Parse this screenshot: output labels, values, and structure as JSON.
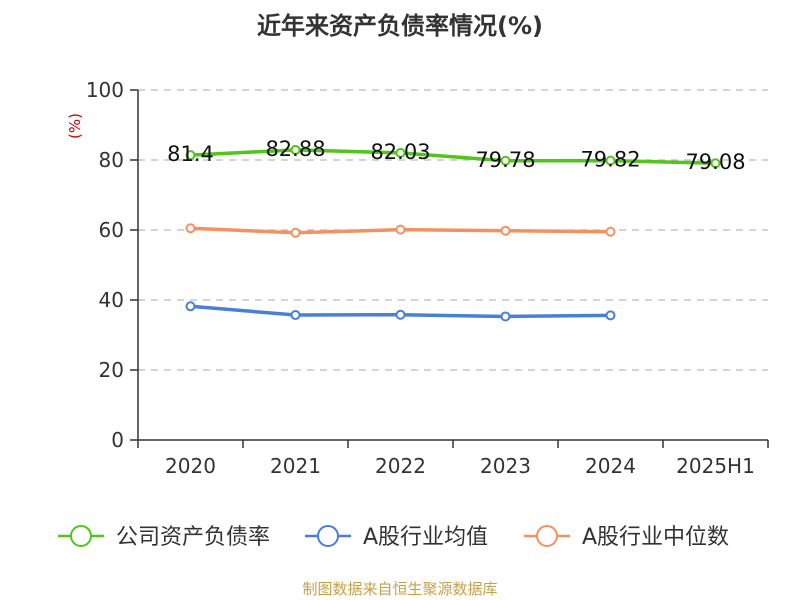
{
  "title": "近年来资产负债率情况(%)",
  "source": "制图数据来自恒生聚源数据库",
  "chart_data": {
    "type": "line",
    "title": "近年来资产负债率情况(%)",
    "ylabel": "(%)",
    "categories": [
      "2020",
      "2021",
      "2022",
      "2023",
      "2024",
      "2025H1"
    ],
    "ylim": [
      0,
      100
    ],
    "yticks": [
      0,
      20,
      40,
      60,
      80,
      100
    ],
    "grid": true,
    "legend_position": "bottom",
    "series": [
      {
        "name": "公司资产负债率",
        "color": "#52c41a",
        "values": [
          81.4,
          82.88,
          82.03,
          79.78,
          79.82,
          79.08
        ],
        "labels": [
          "81.4",
          "82.88",
          "82.03",
          "79.78",
          "79.82",
          "79.08"
        ]
      },
      {
        "name": "A股行业均值",
        "color": "#4a7fd8",
        "values": [
          38.2,
          35.7,
          35.8,
          35.3,
          35.6,
          null
        ]
      },
      {
        "name": "A股行业中位数",
        "color": "#f39160",
        "values": [
          60.5,
          59.2,
          60.1,
          59.8,
          59.5,
          null
        ]
      }
    ]
  }
}
